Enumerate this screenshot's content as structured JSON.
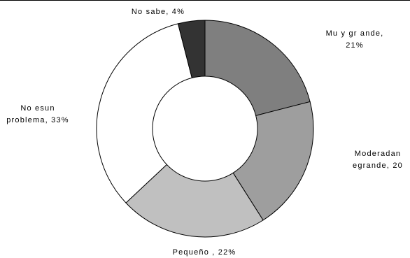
{
  "chart_data": {
    "type": "pie",
    "title": "",
    "slices": [
      {
        "label_lines": [
          "Mu y gr ande,",
          "21%"
        ],
        "value": 21,
        "color": "#7f7f7f"
      },
      {
        "label_lines": [
          "Moderadan",
          "egrande, 20"
        ],
        "value": 20,
        "color": "#9e9e9e"
      },
      {
        "label_lines": [
          "Pequeño , 22%"
        ],
        "value": 22,
        "color": "#c0c0c0"
      },
      {
        "label_lines": [
          "No esun",
          "problema, 33%"
        ],
        "value": 33,
        "color": "#ffffff"
      },
      {
        "label_lines": [
          "No sabe, 4%"
        ],
        "value": 4,
        "color": "#333333"
      }
    ],
    "donut": true,
    "legend": "none"
  }
}
